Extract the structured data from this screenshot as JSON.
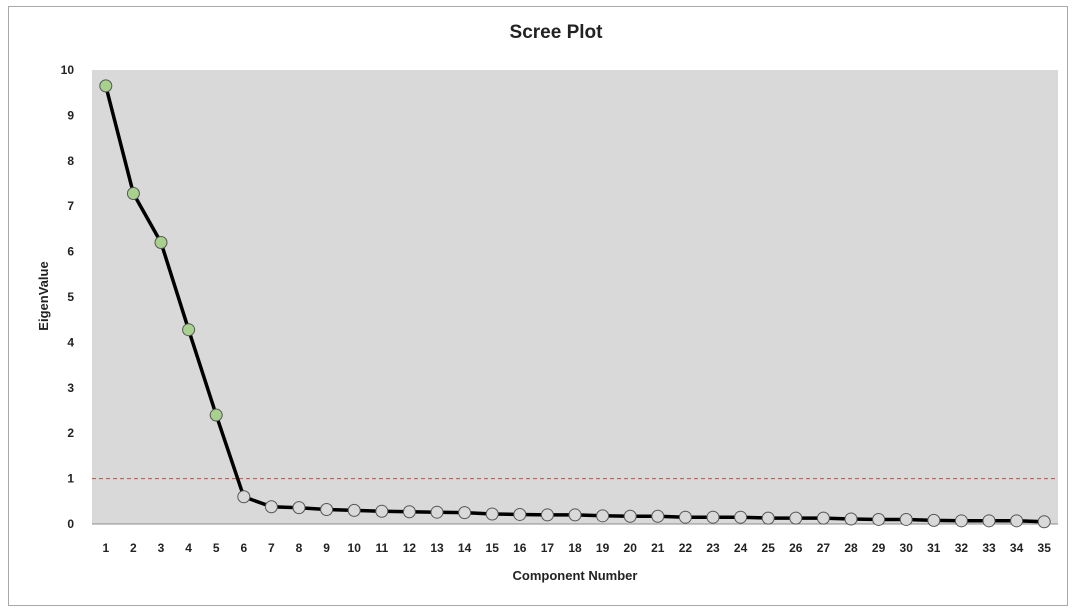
{
  "chart_data": {
    "type": "line",
    "title": "Scree Plot",
    "xlabel": "Component Number",
    "ylabel": "EigenValue",
    "ylim": [
      0,
      10
    ],
    "yticks": [
      0,
      1,
      2,
      3,
      4,
      5,
      6,
      7,
      8,
      9,
      10
    ],
    "categories": [
      "1",
      "2",
      "3",
      "4",
      "5",
      "6",
      "7",
      "8",
      "9",
      "10",
      "11",
      "12",
      "13",
      "14",
      "15",
      "16",
      "17",
      "18",
      "19",
      "20",
      "21",
      "22",
      "23",
      "24",
      "25",
      "26",
      "27",
      "28",
      "29",
      "30",
      "31",
      "32",
      "33",
      "34",
      "35"
    ],
    "values": [
      9.65,
      7.28,
      6.2,
      4.28,
      2.4,
      0.6,
      0.38,
      0.36,
      0.32,
      0.3,
      0.28,
      0.27,
      0.26,
      0.25,
      0.22,
      0.21,
      0.2,
      0.2,
      0.18,
      0.17,
      0.17,
      0.15,
      0.15,
      0.15,
      0.13,
      0.13,
      0.13,
      0.11,
      0.1,
      0.1,
      0.08,
      0.07,
      0.07,
      0.07,
      0.05
    ],
    "retained_components": 5,
    "reference_line": {
      "y": 1,
      "color": "#c0504d",
      "style": "dashed"
    },
    "grid": false,
    "legend": "none",
    "colors": {
      "plot_background": "#d9d9d9",
      "line": "#000000",
      "retained_marker_fill": "#a9d18e",
      "other_marker_fill": "#d9d9d9",
      "marker_stroke": "#555555"
    }
  }
}
